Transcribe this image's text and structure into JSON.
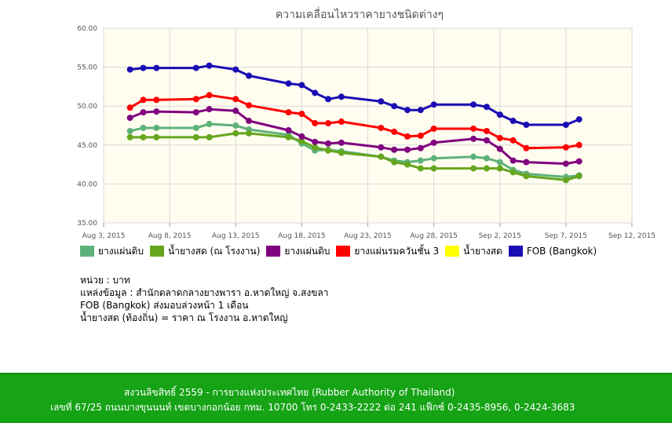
{
  "chart_data": {
    "type": "line",
    "title": "ความเคลื่อนไหวราคายางชนิดต่างๆ",
    "xlabel": "",
    "ylabel": "",
    "ylim": [
      35,
      60
    ],
    "yticks": [
      "35.00",
      "40.00",
      "45.00",
      "50.00",
      "55.00",
      "60.00"
    ],
    "xrange_days": [
      3,
      43
    ],
    "xticks": [
      {
        "label": "Aug 3, 2015",
        "day": 3
      },
      {
        "label": "Aug 8, 2015",
        "day": 8
      },
      {
        "label": "Aug 13, 2015",
        "day": 13
      },
      {
        "label": "Aug 18, 2015",
        "day": 18
      },
      {
        "label": "Aug 23, 2015",
        "day": 23
      },
      {
        "label": "Aug 28, 2015",
        "day": 28
      },
      {
        "label": "Sep 2, 2015",
        "day": 33
      },
      {
        "label": "Sep 7, 2015",
        "day": 38
      },
      {
        "label": "Sep 12, 2015",
        "day": 43
      }
    ],
    "x_days": [
      5,
      6,
      7,
      10,
      11,
      13,
      14,
      17,
      18,
      19,
      20,
      21,
      24,
      25,
      26,
      27,
      28,
      31,
      32,
      33,
      34,
      35,
      38,
      39
    ],
    "series": [
      {
        "name": "ยางแผ่นดิบ",
        "color": "#5fb17a",
        "values": [
          46.8,
          47.2,
          47.2,
          47.2,
          47.7,
          47.5,
          47.0,
          46.3,
          45.2,
          44.3,
          44.4,
          44.2,
          43.5,
          43.0,
          42.8,
          43.0,
          43.3,
          43.5,
          43.3,
          42.8,
          41.8,
          41.3,
          40.9,
          41.1
        ]
      },
      {
        "name": "น้ำยางสด (ณ โรงงาน)",
        "color": "#66a61e",
        "values": [
          46.0,
          46.0,
          46.0,
          46.0,
          46.0,
          46.5,
          46.5,
          46.0,
          45.5,
          44.7,
          44.3,
          44.0,
          43.5,
          42.8,
          42.5,
          42.0,
          42.0,
          42.0,
          42.0,
          42.0,
          41.5,
          41.0,
          40.5,
          41.0
        ]
      },
      {
        "name": "ยางแผ่นดิบ",
        "color": "#800080",
        "values": [
          48.5,
          49.2,
          49.3,
          49.2,
          49.6,
          49.4,
          48.1,
          46.9,
          46.1,
          45.4,
          45.2,
          45.3,
          44.7,
          44.4,
          44.4,
          44.6,
          45.3,
          45.8,
          45.6,
          44.5,
          43.0,
          42.8,
          42.6,
          42.9
        ]
      },
      {
        "name": "ยางแผ่นรมควันชั้น 3",
        "color": "#ff0000",
        "values": [
          49.8,
          50.8,
          50.8,
          50.9,
          51.4,
          50.9,
          50.1,
          49.2,
          49.0,
          47.8,
          47.8,
          48.0,
          47.2,
          46.7,
          46.1,
          46.2,
          47.1,
          47.1,
          46.8,
          45.9,
          45.6,
          44.6,
          44.7,
          45.0
        ]
      },
      {
        "name": "น้ำยางสด",
        "color": "#ffff00",
        "values": []
      },
      {
        "name": "FOB (Bangkok)",
        "color": "#1a0db3",
        "values": [
          54.7,
          54.9,
          54.9,
          54.9,
          55.2,
          54.7,
          53.9,
          52.9,
          52.7,
          51.7,
          50.9,
          51.2,
          50.6,
          50.0,
          49.5,
          49.5,
          50.2,
          50.2,
          49.9,
          48.9,
          48.1,
          47.6,
          47.6,
          48.3
        ]
      }
    ]
  },
  "notes": {
    "unit": "หน่วย : บาท",
    "source": "แหล่งข้อมูล : สำนักตลาดกลางยางพารา อ.หาดใหญ่ จ.สงขลา",
    "fob": "FOB (Bangkok) ส่งมอบล่วงหน้า 1 เดือน",
    "latex": "น้ำยางสด (ท้องถิ่น) = ราคา ณ โรงงาน อ.หาดใหญ่"
  },
  "footer": {
    "copyright": "สงวนลิขสิทธิ์ 2559 - การยางแห่งประเทศไทย (Rubber Authority of Thailand)",
    "address": "เลขที่ 67/25 ถนนบางขุนนนท์ เขตบางกอกน้อย กทม. 10700 โทร 0-2433-2222 ต่อ 241 แฟ็กซ์ 0-2435-8956, 0-2424-3683"
  }
}
